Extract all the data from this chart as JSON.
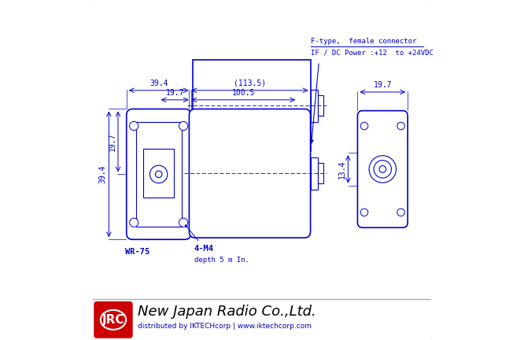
{
  "bg_color": "#ffffff",
  "border_color": "#cccccc",
  "draw_color": "#0000cc",
  "dark_color": "#000000",
  "red_color": "#cc0000",
  "annotations": {
    "f_type_line1": "F-type,  female connector",
    "f_type_line2": "IF / DC Power :+12  to +24VDC",
    "dim_113_5_label": "(113.5)",
    "dim_100_5_label": "100.5",
    "dim_39_4_front_label": "39.4",
    "dim_19_7_front_x_label": "19.7",
    "dim_39_4_side_label": "39.4",
    "dim_19_7_front_y_label": "19.7",
    "dim_19_7_side_label": "19.7",
    "dim_13_4_label": "13.4",
    "wr75_label": "WR-75",
    "m4_label": "4-M4",
    "depth_label": "depth 5 m In.",
    "footer_company": "New Japan Radio Co.,Ltd.",
    "footer_dist": "distributed by IKTECHcorp | www.iktechcorp.com",
    "jrc_label": "JRC"
  }
}
